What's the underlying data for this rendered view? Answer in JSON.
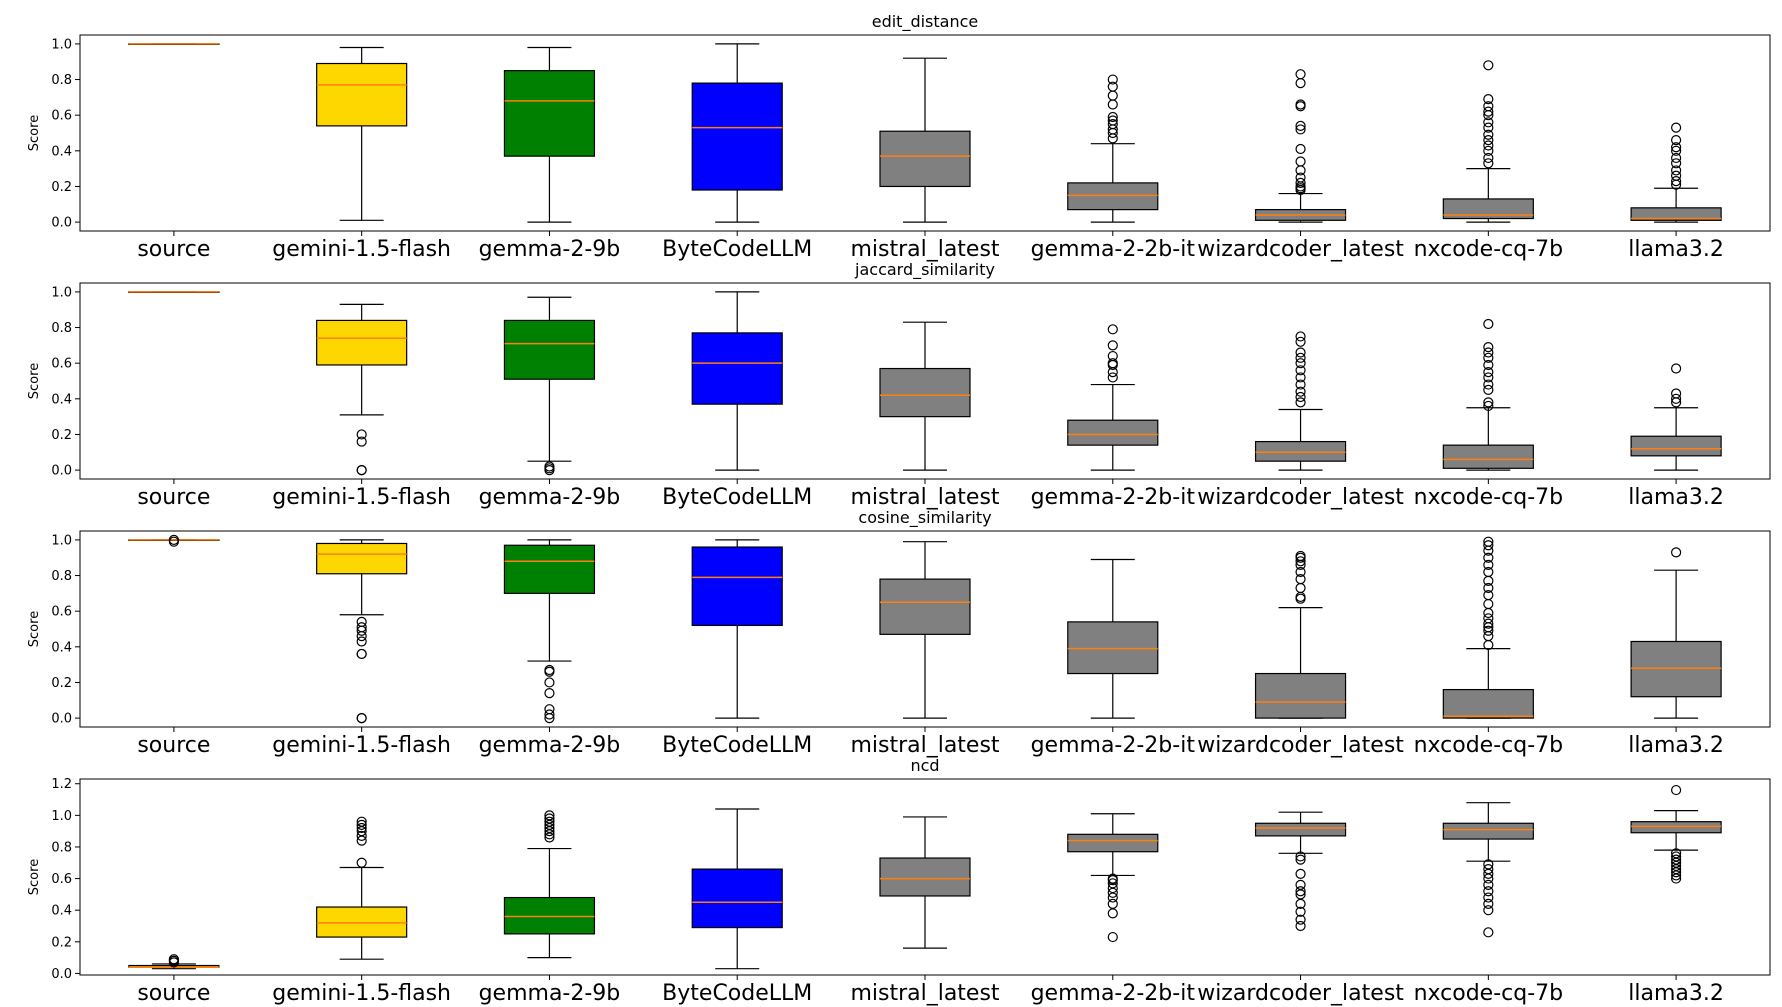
{
  "chart_data": [
    {
      "type": "boxplot",
      "title": "edit_distance",
      "ylabel": "Score",
      "ylim": [
        -0.05,
        1.05
      ],
      "yticks": [
        "0.0",
        "0.2",
        "0.4",
        "0.6",
        "0.8",
        "1.0"
      ],
      "categories": [
        "source",
        "gemini-1.5-flash",
        "gemma-2-9b",
        "ByteCodeLLM",
        "mistral_latest",
        "gemma-2-2b-it",
        "wizardcoder_latest",
        "nxcode-cq-7b",
        "llama3.2"
      ],
      "boxes": [
        {
          "whislo": 1.0,
          "q1": 1.0,
          "med": 1.0,
          "q3": 1.0,
          "whishi": 1.0,
          "fliers": []
        },
        {
          "whislo": 0.01,
          "q1": 0.54,
          "med": 0.77,
          "q3": 0.89,
          "whishi": 0.98,
          "fliers": []
        },
        {
          "whislo": 0.0,
          "q1": 0.37,
          "med": 0.68,
          "q3": 0.85,
          "whishi": 0.98,
          "fliers": []
        },
        {
          "whislo": 0.0,
          "q1": 0.18,
          "med": 0.53,
          "q3": 0.78,
          "whishi": 1.0,
          "fliers": []
        },
        {
          "whislo": 0.0,
          "q1": 0.2,
          "med": 0.37,
          "q3": 0.51,
          "whishi": 0.92,
          "fliers": []
        },
        {
          "whislo": 0.0,
          "q1": 0.07,
          "med": 0.15,
          "q3": 0.22,
          "whishi": 0.44,
          "fliers": [
            0.47,
            0.5,
            0.52,
            0.55,
            0.57,
            0.59,
            0.66,
            0.71,
            0.76,
            0.8
          ]
        },
        {
          "whislo": 0.0,
          "q1": 0.01,
          "med": 0.04,
          "q3": 0.07,
          "whishi": 0.16,
          "fliers": [
            0.18,
            0.19,
            0.2,
            0.22,
            0.25,
            0.29,
            0.34,
            0.41,
            0.52,
            0.54,
            0.65,
            0.66,
            0.78,
            0.83
          ]
        },
        {
          "whislo": 0.0,
          "q1": 0.02,
          "med": 0.04,
          "q3": 0.13,
          "whishi": 0.3,
          "fliers": [
            0.33,
            0.36,
            0.4,
            0.43,
            0.46,
            0.49,
            0.53,
            0.56,
            0.6,
            0.62,
            0.65,
            0.69,
            0.88
          ]
        },
        {
          "whislo": 0.0,
          "q1": 0.01,
          "med": 0.02,
          "q3": 0.08,
          "whishi": 0.19,
          "fliers": [
            0.21,
            0.23,
            0.26,
            0.29,
            0.33,
            0.36,
            0.4,
            0.42,
            0.46,
            0.53
          ]
        }
      ]
    },
    {
      "type": "boxplot",
      "title": "jaccard_similarity",
      "ylabel": "Score",
      "ylim": [
        -0.05,
        1.05
      ],
      "yticks": [
        "0.0",
        "0.2",
        "0.4",
        "0.6",
        "0.8",
        "1.0"
      ],
      "categories": [
        "source",
        "gemini-1.5-flash",
        "gemma-2-9b",
        "ByteCodeLLM",
        "mistral_latest",
        "gemma-2-2b-it",
        "wizardcoder_latest",
        "nxcode-cq-7b",
        "llama3.2"
      ],
      "boxes": [
        {
          "whislo": 1.0,
          "q1": 1.0,
          "med": 1.0,
          "q3": 1.0,
          "whishi": 1.0,
          "fliers": []
        },
        {
          "whislo": 0.31,
          "q1": 0.59,
          "med": 0.74,
          "q3": 0.84,
          "whishi": 0.93,
          "fliers": [
            0.0,
            0.0,
            0.16,
            0.2
          ]
        },
        {
          "whislo": 0.05,
          "q1": 0.51,
          "med": 0.71,
          "q3": 0.84,
          "whishi": 0.97,
          "fliers": [
            0.0,
            0.01,
            0.02
          ]
        },
        {
          "whislo": 0.0,
          "q1": 0.37,
          "med": 0.6,
          "q3": 0.77,
          "whishi": 1.0,
          "fliers": []
        },
        {
          "whislo": 0.0,
          "q1": 0.3,
          "med": 0.42,
          "q3": 0.57,
          "whishi": 0.83,
          "fliers": []
        },
        {
          "whislo": 0.0,
          "q1": 0.14,
          "med": 0.2,
          "q3": 0.28,
          "whishi": 0.48,
          "fliers": [
            0.52,
            0.55,
            0.59,
            0.6,
            0.64,
            0.7,
            0.79
          ]
        },
        {
          "whislo": 0.0,
          "q1": 0.05,
          "med": 0.1,
          "q3": 0.16,
          "whishi": 0.34,
          "fliers": [
            0.38,
            0.41,
            0.44,
            0.48,
            0.52,
            0.56,
            0.6,
            0.63,
            0.66,
            0.72,
            0.75
          ]
        },
        {
          "whislo": 0.0,
          "q1": 0.01,
          "med": 0.06,
          "q3": 0.14,
          "whishi": 0.35,
          "fliers": [
            0.36,
            0.38,
            0.45,
            0.48,
            0.52,
            0.55,
            0.59,
            0.63,
            0.66,
            0.69,
            0.82
          ]
        },
        {
          "whislo": 0.0,
          "q1": 0.08,
          "med": 0.12,
          "q3": 0.19,
          "whishi": 0.35,
          "fliers": [
            0.38,
            0.4,
            0.43,
            0.57
          ]
        }
      ]
    },
    {
      "type": "boxplot",
      "title": "cosine_similarity",
      "ylabel": "Score",
      "ylim": [
        -0.05,
        1.05
      ],
      "yticks": [
        "0.0",
        "0.2",
        "0.4",
        "0.6",
        "0.8",
        "1.0"
      ],
      "categories": [
        "source",
        "gemini-1.5-flash",
        "gemma-2-9b",
        "ByteCodeLLM",
        "mistral_latest",
        "gemma-2-2b-it",
        "wizardcoder_latest",
        "nxcode-cq-7b",
        "llama3.2"
      ],
      "boxes": [
        {
          "whislo": 1.0,
          "q1": 1.0,
          "med": 1.0,
          "q3": 1.0,
          "whishi": 1.0,
          "fliers": [
            0.99,
            1.0
          ]
        },
        {
          "whislo": 0.58,
          "q1": 0.81,
          "med": 0.92,
          "q3": 0.98,
          "whishi": 1.0,
          "fliers": [
            0.0,
            0.0,
            0.36,
            0.36,
            0.43,
            0.46,
            0.49,
            0.51,
            0.54
          ]
        },
        {
          "whislo": 0.32,
          "q1": 0.7,
          "med": 0.88,
          "q3": 0.97,
          "whishi": 1.0,
          "fliers": [
            0.0,
            0.02,
            0.05,
            0.14,
            0.2,
            0.26,
            0.27
          ]
        },
        {
          "whislo": 0.0,
          "q1": 0.52,
          "med": 0.79,
          "q3": 0.96,
          "whishi": 1.0,
          "fliers": []
        },
        {
          "whislo": 0.0,
          "q1": 0.47,
          "med": 0.65,
          "q3": 0.78,
          "whishi": 0.99,
          "fliers": []
        },
        {
          "whislo": 0.0,
          "q1": 0.25,
          "med": 0.39,
          "q3": 0.54,
          "whishi": 0.89,
          "fliers": []
        },
        {
          "whislo": 0.0,
          "q1": 0.0,
          "med": 0.09,
          "q3": 0.25,
          "whishi": 0.62,
          "fliers": [
            0.67,
            0.68,
            0.73,
            0.78,
            0.82,
            0.86,
            0.88,
            0.9,
            0.91
          ]
        },
        {
          "whislo": 0.0,
          "q1": 0.0,
          "med": 0.01,
          "q3": 0.16,
          "whishi": 0.39,
          "fliers": [
            0.41,
            0.46,
            0.49,
            0.51,
            0.53,
            0.56,
            0.59,
            0.64,
            0.69,
            0.73,
            0.77,
            0.82,
            0.86,
            0.9,
            0.94,
            0.97,
            0.99
          ]
        },
        {
          "whislo": 0.0,
          "q1": 0.12,
          "med": 0.28,
          "q3": 0.43,
          "whishi": 0.83,
          "fliers": [
            0.93
          ]
        }
      ]
    },
    {
      "type": "boxplot",
      "title": "ncd",
      "ylabel": "Score",
      "ylim": [
        -0.01,
        1.23
      ],
      "yticks": [
        "0.0",
        "0.2",
        "0.4",
        "0.6",
        "0.8",
        "1.0",
        "1.2"
      ],
      "categories": [
        "source",
        "gemini-1.5-flash",
        "gemma-2-9b",
        "ByteCodeLLM",
        "mistral_latest",
        "gemma-2-2b-it",
        "wizardcoder_latest",
        "nxcode-cq-7b",
        "llama3.2"
      ],
      "boxes": [
        {
          "whislo": 0.03,
          "q1": 0.04,
          "med": 0.04,
          "q3": 0.05,
          "whishi": 0.06,
          "fliers": [
            0.07,
            0.08,
            0.09
          ]
        },
        {
          "whislo": 0.09,
          "q1": 0.23,
          "med": 0.32,
          "q3": 0.42,
          "whishi": 0.67,
          "fliers": [
            0.7,
            0.84,
            0.87,
            0.9,
            0.92,
            0.94,
            0.96
          ]
        },
        {
          "whislo": 0.1,
          "q1": 0.25,
          "med": 0.36,
          "q3": 0.48,
          "whishi": 0.79,
          "fliers": [
            0.86,
            0.88,
            0.9,
            0.92,
            0.94,
            0.96,
            0.98,
            1.0
          ]
        },
        {
          "whislo": 0.03,
          "q1": 0.29,
          "med": 0.45,
          "q3": 0.66,
          "whishi": 1.04,
          "fliers": []
        },
        {
          "whislo": 0.16,
          "q1": 0.49,
          "med": 0.6,
          "q3": 0.73,
          "whishi": 0.99,
          "fliers": []
        },
        {
          "whislo": 0.62,
          "q1": 0.77,
          "med": 0.84,
          "q3": 0.88,
          "whishi": 1.01,
          "fliers": [
            0.23,
            0.38,
            0.44,
            0.48,
            0.51,
            0.54,
            0.57,
            0.59,
            0.6
          ]
        },
        {
          "whislo": 0.76,
          "q1": 0.87,
          "med": 0.92,
          "q3": 0.95,
          "whishi": 1.02,
          "fliers": [
            0.3,
            0.34,
            0.39,
            0.44,
            0.5,
            0.52,
            0.56,
            0.63,
            0.72,
            0.74
          ]
        },
        {
          "whislo": 0.71,
          "q1": 0.85,
          "med": 0.91,
          "q3": 0.95,
          "whishi": 1.08,
          "fliers": [
            0.26,
            0.4,
            0.44,
            0.48,
            0.52,
            0.56,
            0.6,
            0.63,
            0.66,
            0.69
          ]
        },
        {
          "whislo": 0.78,
          "q1": 0.89,
          "med": 0.93,
          "q3": 0.96,
          "whishi": 1.03,
          "fliers": [
            0.6,
            0.62,
            0.64,
            0.66,
            0.68,
            0.7,
            0.72,
            0.74,
            0.76,
            1.16
          ]
        }
      ]
    }
  ],
  "colors": {
    "box_fills": [
      "#ffa500",
      "#ffd700",
      "#008000",
      "#0000ff",
      "#808080",
      "#808080",
      "#808080",
      "#808080",
      "#808080"
    ],
    "median": "#ff7f0e",
    "line": "#000000"
  }
}
